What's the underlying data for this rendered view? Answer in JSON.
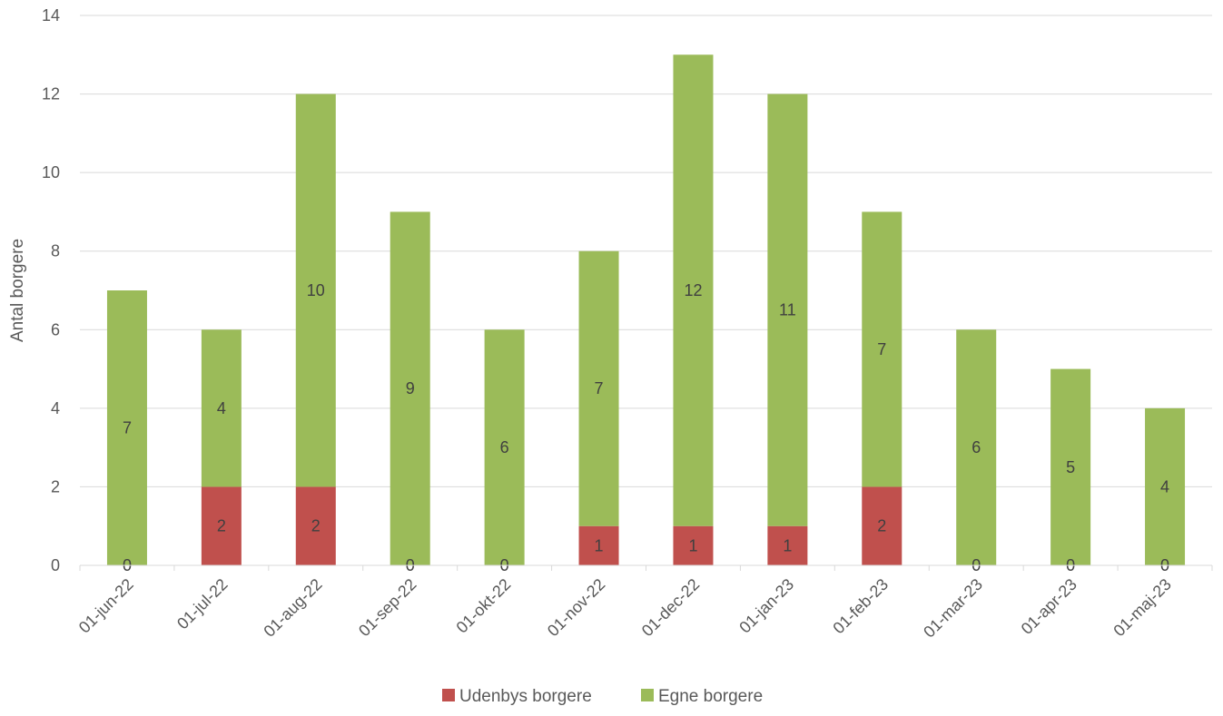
{
  "chart_data": {
    "type": "bar",
    "stacked": true,
    "title": "",
    "xlabel": "",
    "ylabel": "Antal borgere",
    "ylim": [
      0,
      14
    ],
    "yticks": [
      0,
      2,
      4,
      6,
      8,
      10,
      12,
      14
    ],
    "grid": true,
    "legend_position": "bottom",
    "categories": [
      "01-jun-22",
      "01-jul-22",
      "01-aug-22",
      "01-sep-22",
      "01-okt-22",
      "01-nov-22",
      "01-dec-22",
      "01-jan-23",
      "01-feb-23",
      "01-mar-23",
      "01-apr-23",
      "01-maj-23"
    ],
    "series": [
      {
        "name": "Udenbys borgere",
        "color": "#C0504D",
        "values": [
          0,
          2,
          2,
          0,
          0,
          1,
          1,
          1,
          2,
          0,
          0,
          0
        ]
      },
      {
        "name": "Egne borgere",
        "color": "#9BBB59",
        "values": [
          7,
          4,
          10,
          9,
          6,
          7,
          12,
          11,
          7,
          6,
          5,
          4
        ]
      }
    ]
  }
}
